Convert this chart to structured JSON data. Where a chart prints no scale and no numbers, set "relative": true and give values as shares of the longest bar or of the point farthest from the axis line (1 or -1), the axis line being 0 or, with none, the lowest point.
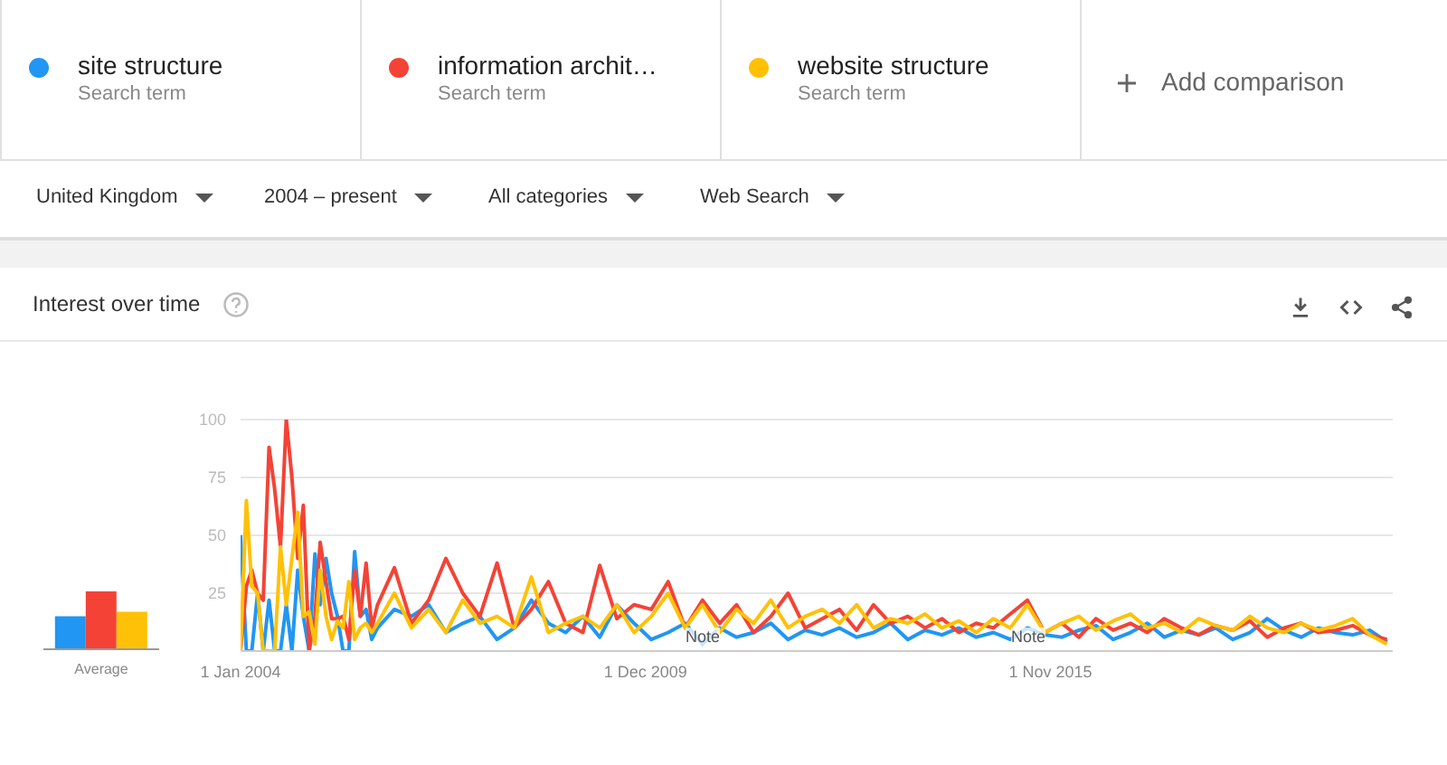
{
  "chart_data": [
    {
      "type": "line",
      "title": "Interest over time",
      "legend": "top",
      "grid": "y",
      "marker": "none",
      "line_style": "solid",
      "x": [
        "2004-01",
        "2004-02",
        "2004-03",
        "2004-04",
        "2004-05",
        "2004-06",
        "2004-07",
        "2004-08",
        "2004-09",
        "2004-10",
        "2004-11",
        "2004-12",
        "2005-01",
        "2005-02",
        "2005-03",
        "2005-04",
        "2005-05",
        "2005-06",
        "2005-07",
        "2005-08",
        "2005-09",
        "2005-10",
        "2005-11",
        "2005-12",
        "2006-01",
        "2006-04",
        "2006-07",
        "2006-10",
        "2007-01",
        "2007-04",
        "2007-07",
        "2007-10",
        "2008-01",
        "2008-04",
        "2008-07",
        "2008-10",
        "2009-01",
        "2009-04",
        "2009-07",
        "2009-10",
        "2010-01",
        "2010-04",
        "2010-07",
        "2010-10",
        "2011-01",
        "2011-04",
        "2011-07",
        "2011-10",
        "2012-01",
        "2012-04",
        "2012-07",
        "2012-10",
        "2013-01",
        "2013-04",
        "2013-07",
        "2013-10",
        "2014-01",
        "2014-04",
        "2014-07",
        "2014-10",
        "2015-01",
        "2015-04",
        "2015-07",
        "2015-10",
        "2016-01",
        "2016-04",
        "2016-07",
        "2016-10",
        "2017-01",
        "2017-04",
        "2017-07",
        "2017-10",
        "2018-01",
        "2018-04",
        "2018-07",
        "2018-10",
        "2019-01",
        "2019-04",
        "2019-07",
        "2019-10",
        "2020-01",
        "2020-04",
        "2020-07",
        "2020-10"
      ],
      "xlim": [
        "2004-01",
        "2020-11"
      ],
      "xticks": [
        {
          "value": "2004-01",
          "label": "1 Jan 2004"
        },
        {
          "value": "2009-12",
          "label": "1 Dec 2009"
        },
        {
          "value": "2015-11",
          "label": "1 Nov 2015"
        }
      ],
      "ylim": [
        0,
        100
      ],
      "yticks": [
        {
          "value": 0,
          "label": null
        },
        25,
        50,
        75,
        100
      ],
      "series": [
        {
          "name": "site structure",
          "color": "#2196f3",
          "values": [
            50,
            0,
            0,
            25,
            0,
            22,
            0,
            0,
            20,
            0,
            35,
            15,
            0,
            42,
            20,
            40,
            25,
            15,
            0,
            0,
            43,
            15,
            18,
            5,
            10,
            18,
            15,
            20,
            8,
            12,
            15,
            5,
            10,
            22,
            12,
            8,
            15,
            6,
            20,
            12,
            5,
            8,
            12,
            3,
            10,
            6,
            8,
            12,
            5,
            9,
            7,
            10,
            6,
            8,
            12,
            5,
            9,
            7,
            10,
            6,
            8,
            5,
            10,
            7,
            6,
            9,
            11,
            5,
            8,
            12,
            6,
            9,
            7,
            10,
            5,
            8,
            14,
            9,
            6,
            10,
            8,
            7,
            9,
            4
          ]
        },
        {
          "name": "information archit…",
          "color": "#f44336",
          "values": [
            0,
            28,
            35,
            25,
            22,
            88,
            70,
            45,
            100,
            75,
            40,
            63,
            0,
            15,
            47,
            30,
            14,
            14,
            15,
            5,
            35,
            15,
            38,
            10,
            20,
            36,
            12,
            22,
            40,
            25,
            15,
            38,
            10,
            18,
            30,
            12,
            8,
            37,
            14,
            20,
            18,
            30,
            10,
            22,
            12,
            20,
            8,
            15,
            25,
            10,
            14,
            18,
            9,
            20,
            12,
            15,
            10,
            14,
            8,
            12,
            10,
            16,
            22,
            8,
            12,
            6,
            14,
            9,
            12,
            8,
            14,
            10,
            7,
            11,
            9,
            13,
            6,
            10,
            12,
            8,
            9,
            11,
            7,
            5
          ]
        },
        {
          "name": "website structure",
          "color": "#ffc107",
          "values": [
            0,
            65,
            28,
            25,
            0,
            0,
            0,
            45,
            20,
            40,
            60,
            15,
            17,
            3,
            35,
            15,
            5,
            13,
            10,
            30,
            5,
            10,
            12,
            8,
            12,
            25,
            10,
            18,
            8,
            22,
            12,
            15,
            10,
            32,
            8,
            12,
            15,
            10,
            20,
            8,
            15,
            25,
            10,
            20,
            8,
            18,
            12,
            22,
            10,
            15,
            18,
            12,
            20,
            10,
            14,
            12,
            16,
            10,
            13,
            8,
            14,
            10,
            20,
            8,
            12,
            15,
            9,
            13,
            16,
            10,
            12,
            8,
            14,
            11,
            9,
            15,
            10,
            8,
            12,
            9,
            11,
            14,
            7,
            3
          ]
        }
      ],
      "annotations": [
        "Search term",
        "Search term",
        "Search term",
        "Add comparison",
        "United Kingdom",
        "2004 – present",
        "All categories",
        "Web Search",
        "Note",
        "Note"
      ]
    },
    {
      "type": "bar",
      "relative": true,
      "categories": [
        "Average"
      ],
      "series": [
        {
          "color": "#2196f3",
          "values": [
            0.57
          ]
        },
        {
          "color": "#f44336",
          "values": [
            1
          ]
        },
        {
          "color": "#ffc107",
          "values": [
            0.65
          ]
        }
      ]
    }
  ]
}
